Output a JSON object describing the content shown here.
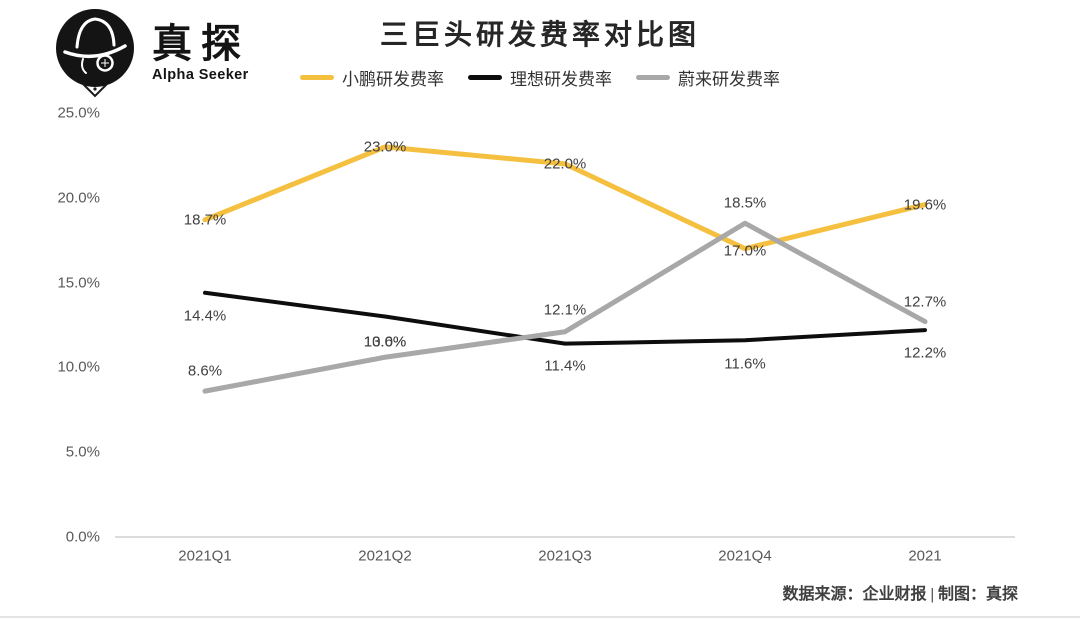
{
  "logo": {
    "brand": "真探",
    "subtitle": "Alpha Seeker"
  },
  "title": "三巨头研发费率对比图",
  "source_note": "数据来源：企业财报 | 制图：真探",
  "colors": {
    "xpeng": "#F5C040",
    "li": "#0D0D0D",
    "nio": "#A8A8A8",
    "axis_line": "#DCDCDC",
    "tick_text": "#595959",
    "data_label": "#404040"
  },
  "chart_data": {
    "type": "line",
    "title": "三巨头研发费率对比图",
    "categories": [
      "2021Q1",
      "2021Q2",
      "2021Q3",
      "2021Q4",
      "2021"
    ],
    "series": [
      {
        "name": "小鹏研发费率",
        "color_key": "xpeng",
        "values": [
          18.7,
          23.0,
          22.0,
          17.0,
          19.6
        ],
        "labels": [
          "18.7%",
          "23.0%",
          "22.0%",
          "17.0%",
          "19.6%"
        ],
        "label_dy": [
          0,
          0,
          0,
          2,
          0
        ]
      },
      {
        "name": "理想研发费率",
        "color_key": "li",
        "values": [
          14.4,
          13.0,
          11.4,
          11.6,
          12.2
        ],
        "labels": [
          "14.4%",
          "13.0%",
          "11.4%",
          "11.6%",
          "12.2%"
        ],
        "label_dy": [
          23,
          25,
          22,
          24,
          23
        ]
      },
      {
        "name": "蔚来研发费率",
        "color_key": "nio",
        "values": [
          8.6,
          10.6,
          12.1,
          18.5,
          12.7
        ],
        "labels": [
          "8.6%",
          "10.6%",
          "12.1%",
          "18.5%",
          "12.7%"
        ],
        "label_dy": [
          -20,
          -15,
          -22,
          -20,
          -20
        ]
      }
    ],
    "ylim": [
      0,
      25
    ],
    "yticks": [
      {
        "label": "25.0%",
        "value": 25
      },
      {
        "label": "20.0%",
        "value": 20
      },
      {
        "label": "15.0%",
        "value": 15
      },
      {
        "label": "10.0%",
        "value": 10
      },
      {
        "label": "5.0%",
        "value": 5
      },
      {
        "label": "0.0%",
        "value": 0
      }
    ],
    "grid": false,
    "legend_position": "top"
  }
}
